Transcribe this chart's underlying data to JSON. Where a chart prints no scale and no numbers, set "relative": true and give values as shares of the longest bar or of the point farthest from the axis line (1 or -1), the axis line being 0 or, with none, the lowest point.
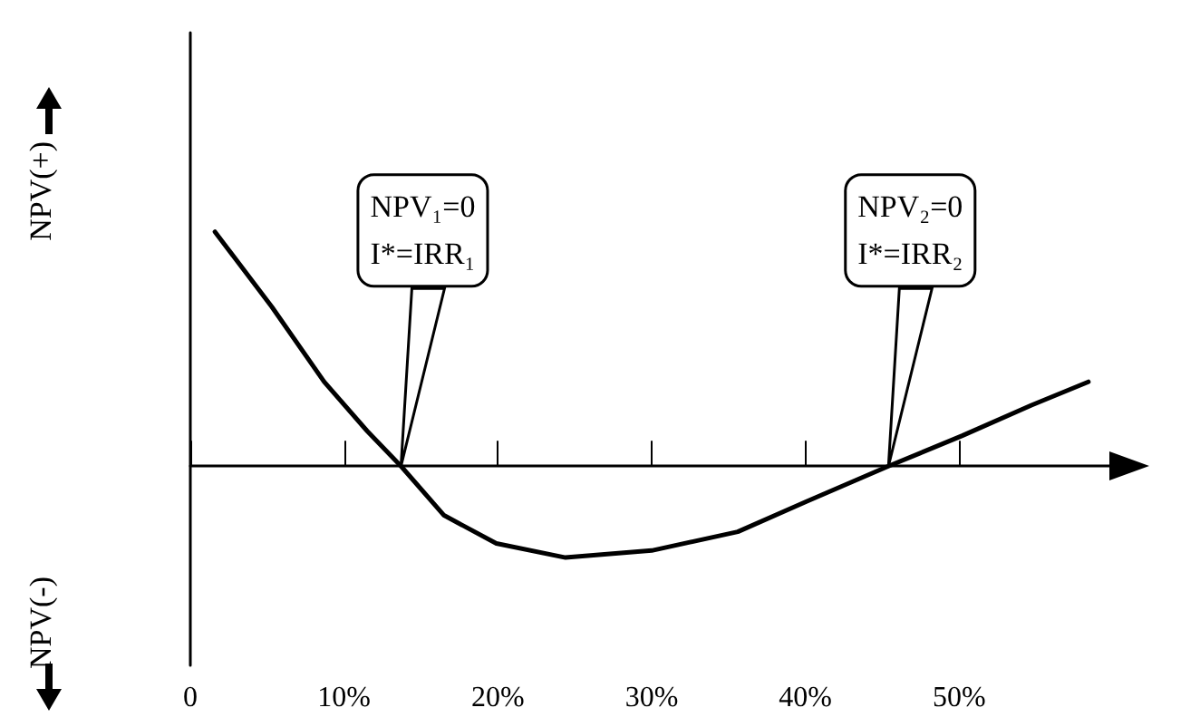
{
  "chart_data": {
    "type": "line",
    "relative": true,
    "ylabel": "NPV(+)",
    "x": [
      1.6,
      5.3,
      8.7,
      11.5,
      13.7,
      16.5,
      19.9,
      24.4,
      30,
      35.6,
      40.1,
      45.4,
      50.2,
      54.7,
      58.4
    ],
    "series": [
      {
        "color": "#000000",
        "values": [
          1,
          0.68,
          0.36,
          0.15,
          0,
          -0.21,
          -0.33,
          -0.39,
          -0.36,
          -0.28,
          -0.15,
          0,
          0.13,
          0.26,
          0.36
        ]
      }
    ],
    "xlim": [
      0,
      60
    ],
    "xticks": [
      {
        "value": 0,
        "label": "0"
      },
      {
        "value": 10,
        "label": "10%"
      },
      {
        "value": 20,
        "label": "20%"
      },
      {
        "value": 30,
        "label": "30%"
      },
      {
        "value": 40,
        "label": "40%"
      },
      {
        "value": 50,
        "label": "50%"
      }
    ],
    "annotations": [
      {
        "text": "NPV₁=0\nI*=IRR₁",
        "x": 13.7,
        "y": 0
      },
      {
        "text": "NPV₂=0\nI*=IRR₂",
        "x": 45.4,
        "y": 0
      },
      "NPV(-)"
    ],
    "marker": "none"
  }
}
